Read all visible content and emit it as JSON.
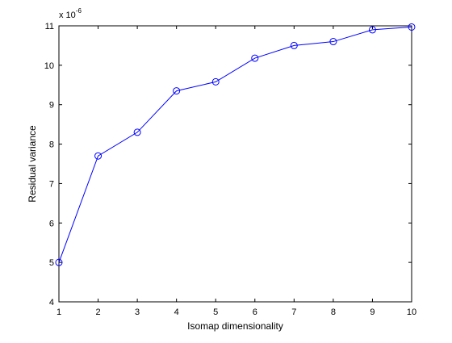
{
  "chart_data": {
    "type": "line",
    "title": "",
    "xlabel": "Isomap dimensionality",
    "ylabel": "Residual variance",
    "x": [
      1,
      2,
      3,
      4,
      5,
      6,
      7,
      8,
      9,
      10
    ],
    "series": [
      {
        "values": [
          5.0,
          7.7,
          8.3,
          9.35,
          9.58,
          10.18,
          10.5,
          10.6,
          10.9,
          10.97
        ]
      }
    ],
    "xlim": [
      1,
      10
    ],
    "ylim": [
      4,
      11
    ],
    "xticks": [
      "1",
      "2",
      "3",
      "4",
      "5",
      "6",
      "7",
      "8",
      "9",
      "10"
    ],
    "yticks": [
      "4",
      "5",
      "6",
      "7",
      "8",
      "9",
      "10",
      "11"
    ],
    "exponent_label": "x 10",
    "exponent_power": "-6",
    "grid": false,
    "marker": "circle",
    "line_color": "#0000ff",
    "axis_color": "#000000"
  }
}
